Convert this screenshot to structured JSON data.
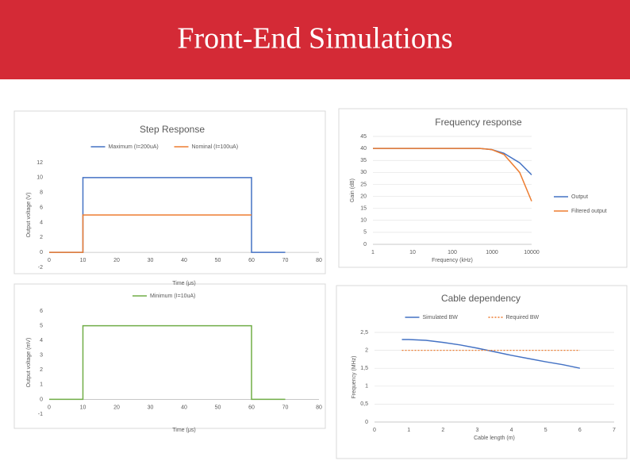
{
  "slide_title": "Front-End Simulations",
  "chart_data": [
    {
      "type": "line",
      "title": "Step Response",
      "xlabel": "Time (μs)",
      "ylabel": "Output voltage (V)",
      "xlim": [
        0,
        80
      ],
      "xticks": [
        0,
        10,
        20,
        30,
        40,
        50,
        60,
        70,
        80
      ],
      "ylim": [
        -2,
        12
      ],
      "yticks": [
        -2,
        0,
        2,
        4,
        6,
        8,
        10,
        12
      ],
      "grid": false,
      "legend": "top",
      "series": [
        {
          "name": "Maximum (I=200uA)",
          "color": "#4472c4",
          "x": [
            0,
            10,
            10,
            60,
            60,
            70
          ],
          "y": [
            0,
            0,
            10,
            10,
            0,
            0
          ]
        },
        {
          "name": "Nominal (I=100uA)",
          "color": "#ed7d31",
          "x": [
            0,
            10,
            10,
            60
          ],
          "y": [
            0,
            0,
            5,
            5
          ]
        }
      ]
    },
    {
      "type": "line",
      "title": "Frequency response",
      "xlabel": "Frequency (kHz)",
      "ylabel": "Gain (dB)",
      "xscale": "log",
      "xlim": [
        1,
        10000
      ],
      "xticks": [
        1,
        10,
        100,
        1000,
        10000
      ],
      "ylim": [
        0,
        45
      ],
      "yticks": [
        0,
        5,
        10,
        15,
        20,
        25,
        30,
        35,
        40,
        45
      ],
      "grid": true,
      "legend": "right",
      "series": [
        {
          "name": "Output",
          "color": "#4472c4",
          "x": [
            1,
            10,
            100,
            500,
            1000,
            2000,
            5000,
            10000
          ],
          "y": [
            40,
            40,
            40,
            40,
            39.5,
            38,
            34,
            29
          ]
        },
        {
          "name": "Filtered output",
          "color": "#ed7d31",
          "x": [
            1,
            10,
            100,
            500,
            1000,
            2000,
            5000,
            10000
          ],
          "y": [
            40,
            40,
            40,
            40,
            39.5,
            37.5,
            30,
            18
          ]
        }
      ]
    },
    {
      "type": "line",
      "xlabel": "Time (μs)",
      "ylabel": "Output voltage (mV)",
      "xlim": [
        0,
        80
      ],
      "xticks": [
        0,
        10,
        20,
        30,
        40,
        50,
        60,
        70,
        80
      ],
      "ylim": [
        -1,
        6
      ],
      "yticks": [
        -1,
        0,
        1,
        2,
        3,
        4,
        5,
        6
      ],
      "grid": false,
      "legend": "top",
      "series": [
        {
          "name": "Minimum (I=10uA)",
          "color": "#70ad47",
          "x": [
            0,
            10,
            10,
            60,
            60,
            70
          ],
          "y": [
            0,
            0,
            5,
            5,
            0,
            0
          ]
        }
      ]
    },
    {
      "type": "line",
      "title": "Cable dependency",
      "xlabel": "Cable length (m)",
      "ylabel": "Frequency (MHz)",
      "xlim": [
        0,
        7
      ],
      "xticks": [
        0,
        1,
        2,
        3,
        4,
        5,
        6,
        7
      ],
      "ylim": [
        0,
        2.5
      ],
      "yticks": [
        0,
        {
          "value": 0.5,
          "label": "0,5"
        },
        1,
        {
          "value": 1.5,
          "label": "1,5"
        },
        2,
        {
          "value": 2.5,
          "label": "2,5"
        }
      ],
      "grid": true,
      "legend": "top",
      "series": [
        {
          "name": "Simulated BW",
          "color": "#4472c4",
          "x": [
            0.8,
            1,
            1.5,
            2,
            2.5,
            3,
            3.5,
            4,
            4.5,
            5,
            5.5,
            6
          ],
          "y": [
            2.3,
            2.3,
            2.28,
            2.22,
            2.15,
            2.06,
            1.96,
            1.86,
            1.77,
            1.68,
            1.6,
            1.5
          ]
        },
        {
          "name": "Required BW",
          "color": "#ed7d31",
          "dash": true,
          "x": [
            0.8,
            6
          ],
          "y": [
            2,
            2
          ]
        }
      ]
    }
  ]
}
